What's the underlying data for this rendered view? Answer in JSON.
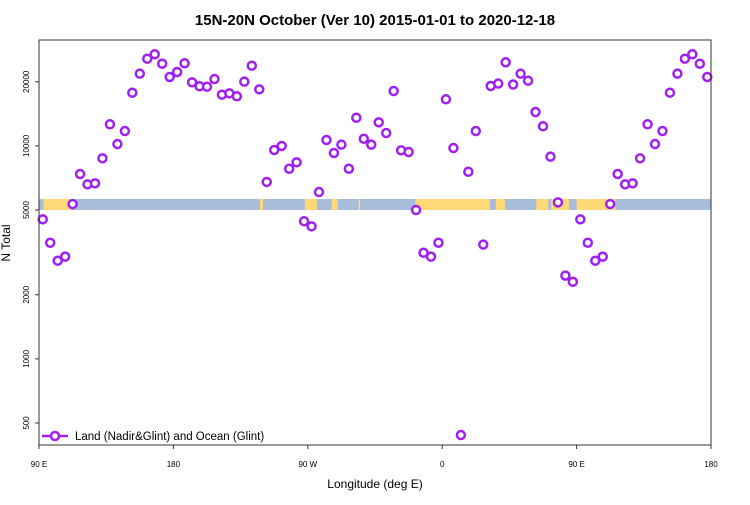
{
  "chart_data": {
    "type": "scatter",
    "title": "15N-20N October (Ver 10)   2015-01-01 to 2020-12-18",
    "xlabel": "Longitude (deg E)",
    "ylabel": "N Total",
    "xlim": [
      90,
      540
    ],
    "ylim_log": [
      400,
      30000
    ],
    "y_scale": "log",
    "x_ticks": [
      {
        "value": 90,
        "label": "90 E"
      },
      {
        "value": 180,
        "label": "180"
      },
      {
        "value": 270,
        "label": "90 W"
      },
      {
        "value": 360,
        "label": "0"
      },
      {
        "value": 450,
        "label": "90 E"
      },
      {
        "value": 540,
        "label": "180"
      }
    ],
    "y_ticks": [
      {
        "value": 500,
        "label": "500"
      },
      {
        "value": 1000,
        "label": "1000"
      },
      {
        "value": 2000,
        "label": "2000"
      },
      {
        "value": 5000,
        "label": "5000"
      },
      {
        "value": 10000,
        "label": "10000"
      },
      {
        "value": 20000,
        "label": "20000"
      }
    ],
    "legend": {
      "position": "bottom-left",
      "entries": [
        {
          "label": "Land (Nadir&Glint) and Ocean (Glint)",
          "color": "#a020f0"
        }
      ]
    },
    "series": [
      {
        "name": "Land (Nadir&Glint) and Ocean (Glint)",
        "color": "#a020f0",
        "x_start": 92.5,
        "x_step": 5,
        "repeat_period_deg": 360,
        "values": [
          4520,
          3510,
          2890,
          3020,
          5330,
          7380,
          6600,
          6670,
          8740,
          12630,
          10200,
          11740,
          17770,
          21830,
          25660,
          26910,
          24310,
          21060,
          22230,
          24420,
          19880,
          19040,
          18960,
          20600,
          17390,
          17650,
          17090,
          20020,
          23790,
          18430,
          6770,
          9560,
          9990,
          7810,
          8370,
          4430,
          4190,
          6070,
          10660,
          9260,
          10130,
          7810,
          13560,
          10800,
          10130,
          12900,
          11490,
          18100,
          9530,
          9360,
          5000,
          3150,
          3020,
          3510,
          16550,
          9770,
          439,
          7560,
          11740,
          3440,
          19100,
          19620,
          24680,
          19410,
          21830,
          20230,
          14420,
          12360,
          8900,
          5430,
          2460,
          2300
        ]
      }
    ],
    "land_map_strip": {
      "ocean_color": "#a6bddb",
      "land_color": "#fed976",
      "land_ranges_deg": [
        [
          93,
          112
        ],
        [
          238,
          240
        ],
        [
          268,
          276
        ],
        [
          286,
          290
        ],
        [
          304,
          305
        ],
        [
          342,
          392
        ],
        [
          396,
          402
        ],
        [
          423,
          431
        ],
        [
          433,
          445
        ],
        [
          450,
          462
        ],
        [
          465,
          476
        ]
      ]
    }
  }
}
